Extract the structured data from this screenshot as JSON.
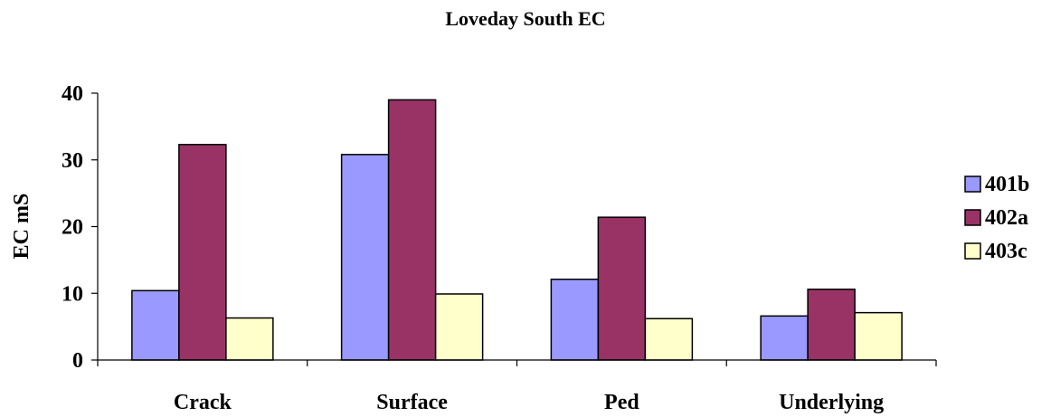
{
  "chart_data": {
    "type": "bar",
    "title": "Loveday South EC",
    "xlabel": "",
    "ylabel": "EC mS",
    "ylim": [
      0,
      40
    ],
    "yticks": [
      0,
      10,
      20,
      30,
      40
    ],
    "grid": false,
    "legend_position": "right",
    "categories": [
      "Crack",
      "Surface",
      "Ped",
      "Underlying"
    ],
    "series": [
      {
        "name": "401b",
        "color": "#9999ff",
        "values": [
          10.4,
          30.8,
          12.1,
          6.6
        ]
      },
      {
        "name": "402a",
        "color": "#993366",
        "values": [
          32.3,
          39.0,
          21.4,
          10.6
        ]
      },
      {
        "name": "403c",
        "color": "#ffffcc",
        "values": [
          6.3,
          9.9,
          6.2,
          7.1
        ]
      }
    ]
  }
}
